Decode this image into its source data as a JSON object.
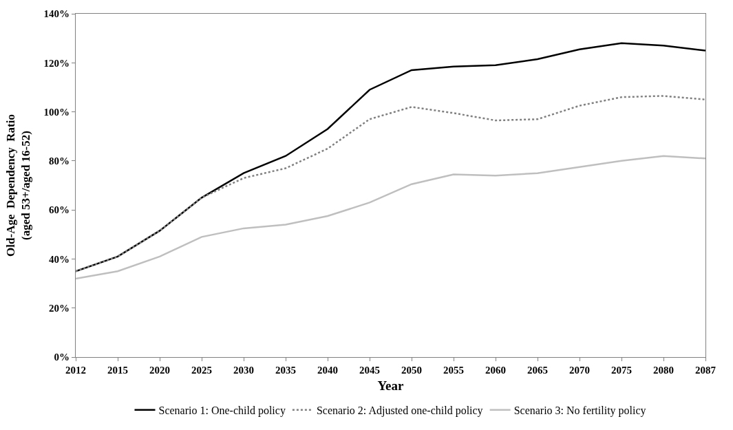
{
  "chart_data": {
    "type": "line",
    "xlabel": "Year",
    "ylabel": "Old-Age  Dependency  Ratio\n(aged 53+/aged 16-52)",
    "categories": [
      "2012",
      "2015",
      "2020",
      "2025",
      "2030",
      "2035",
      "2040",
      "2045",
      "2050",
      "2055",
      "2060",
      "2065",
      "2070",
      "2075",
      "2080",
      "2087"
    ],
    "series": [
      {
        "name": "Scenario 1: One-child policy",
        "color": "#000000",
        "line_style": "solid",
        "values": [
          35,
          41,
          51.5,
          65,
          75,
          82,
          93,
          109,
          117,
          118.5,
          119,
          121.5,
          125.5,
          128,
          127,
          125
        ]
      },
      {
        "name": "Scenario 2: Adjusted one-child policy",
        "color": "#808080",
        "line_style": "dotted",
        "values": [
          35,
          41,
          51.5,
          65,
          73,
          77,
          85,
          97,
          102,
          99.5,
          96.5,
          97,
          102.5,
          106,
          106.5,
          105
        ]
      },
      {
        "name": "Scenario 3: No fertility policy",
        "color": "#bfbfbf",
        "line_style": "solid",
        "values": [
          32,
          35,
          41,
          49,
          52.5,
          54,
          57.5,
          63,
          70.5,
          74.5,
          74,
          75,
          77.5,
          80,
          82,
          81
        ]
      }
    ],
    "ylim": [
      0,
      140
    ],
    "yticks": [
      {
        "value": 0,
        "label": "0%"
      },
      {
        "value": 20,
        "label": "20%"
      },
      {
        "value": 40,
        "label": "40%"
      },
      {
        "value": 60,
        "label": "60%"
      },
      {
        "value": 80,
        "label": "80%"
      },
      {
        "value": 100,
        "label": "100%"
      },
      {
        "value": 120,
        "label": "120%"
      },
      {
        "value": 140,
        "label": "140%"
      }
    ],
    "legend": "bottom",
    "marker": "none"
  }
}
